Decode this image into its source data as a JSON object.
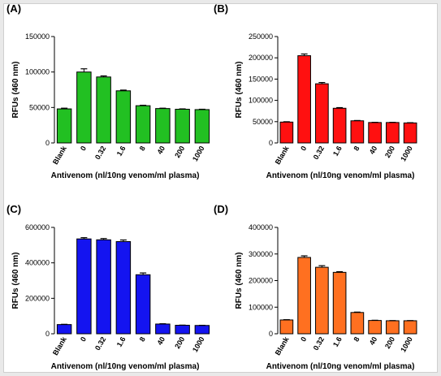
{
  "chart_data": [
    {
      "panel_label": "(A)",
      "type": "bar",
      "color": "#22c022",
      "categories": [
        "Blank",
        "0",
        "0.32",
        "1.6",
        "8",
        "40",
        "200",
        "1000"
      ],
      "values": [
        48000,
        100000,
        93000,
        73500,
        52500,
        48500,
        47500,
        47000
      ],
      "errors": [
        1000,
        4500,
        1500,
        1000,
        600,
        500,
        500,
        500
      ],
      "ylabel": "RFUs (460 nm)",
      "xlabel": "Antivenom (nl/10ng venom/ml plasma)",
      "ylim": [
        0,
        150000
      ],
      "yticks": [
        0,
        50000,
        100000,
        150000
      ],
      "ytick_labels": [
        "0",
        "50000",
        "100000",
        "150000"
      ]
    },
    {
      "panel_label": "(B)",
      "type": "bar",
      "color": "#ff1010",
      "categories": [
        "Blank",
        "0",
        "0.32",
        "1.6",
        "8",
        "40",
        "200",
        "1000"
      ],
      "values": [
        49000,
        205000,
        139000,
        81500,
        52000,
        48000,
        48000,
        47000
      ],
      "errors": [
        800,
        4000,
        3000,
        1500,
        700,
        500,
        500,
        500
      ],
      "ylabel": "RFUs (460 nm)",
      "xlabel": "Antivenom (nl/10ng venom/ml plasma)",
      "ylim": [
        0,
        250000
      ],
      "yticks": [
        0,
        50000,
        100000,
        150000,
        200000,
        250000
      ],
      "ytick_labels": [
        "0",
        "50000",
        "100000",
        "150000",
        "200000",
        "250000"
      ]
    },
    {
      "panel_label": "(C)",
      "type": "bar",
      "color": "#1414f0",
      "categories": [
        "Blank",
        "0",
        "0.32",
        "1.6",
        "8",
        "40",
        "200",
        "1000"
      ],
      "values": [
        52000,
        535000,
        530000,
        520000,
        333000,
        55000,
        48000,
        47000
      ],
      "errors": [
        1500,
        7000,
        7000,
        9000,
        10000,
        1500,
        800,
        800
      ],
      "ylabel": "RFUs (460 nm)",
      "xlabel": "Antivenom (nl/10ng venom/ml plasma)",
      "ylim": [
        0,
        600000
      ],
      "yticks": [
        0,
        200000,
        400000,
        600000
      ],
      "ytick_labels": [
        "0",
        "200000",
        "400000",
        "600000"
      ]
    },
    {
      "panel_label": "(D)",
      "type": "bar",
      "color": "#ff7020",
      "categories": [
        "Blank",
        "0",
        "0.32",
        "1.6",
        "8",
        "40",
        "200",
        "1000"
      ],
      "values": [
        52000,
        287000,
        250000,
        231000,
        80000,
        50000,
        49000,
        49000
      ],
      "errors": [
        1000,
        6000,
        6000,
        2500,
        1500,
        800,
        600,
        600
      ],
      "ylabel": "RFUs (460 nm)",
      "xlabel": "Antivenom (nl/10ng venom/ml plasma)",
      "ylim": [
        0,
        400000
      ],
      "yticks": [
        0,
        100000,
        200000,
        300000,
        400000
      ],
      "ytick_labels": [
        "0",
        "100000",
        "200000",
        "300000",
        "400000"
      ]
    }
  ]
}
